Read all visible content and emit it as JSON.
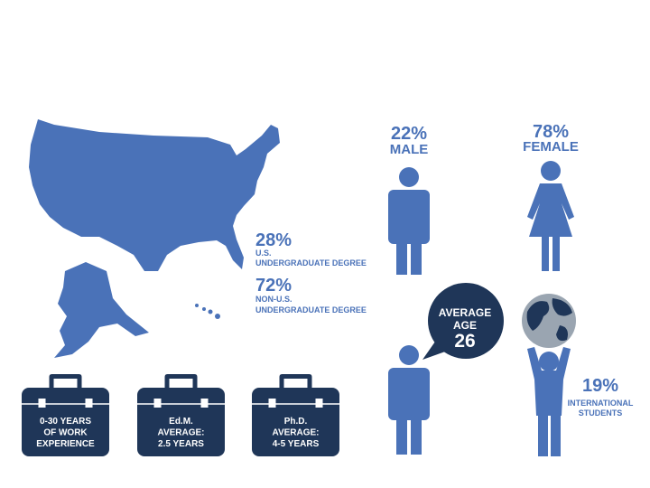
{
  "map_stats": [
    {
      "value": "28%",
      "label_lines": [
        "U.S.",
        "UNDERGRADUATE DEGREE"
      ]
    },
    {
      "value": "72%",
      "label_lines": [
        "NON-U.S.",
        "UNDERGRADUATE DEGREE"
      ]
    }
  ],
  "gender": [
    {
      "value": "22%",
      "label": "MALE"
    },
    {
      "value": "78%",
      "label": "FEMALE"
    }
  ],
  "age": {
    "label_lines": [
      "AVERAGE",
      "AGE"
    ],
    "value": "26"
  },
  "international": {
    "value": "19%",
    "label_lines": [
      "INTERNATIONAL",
      "STUDENTS"
    ]
  },
  "briefcases": [
    [
      "0-30 YEARS",
      "OF WORK",
      "EXPERIENCE"
    ],
    [
      "Ed.M.",
      "AVERAGE:",
      "2.5 YEARS"
    ],
    [
      "Ph.D.",
      "AVERAGE:",
      "4-5 YEARS"
    ]
  ]
}
